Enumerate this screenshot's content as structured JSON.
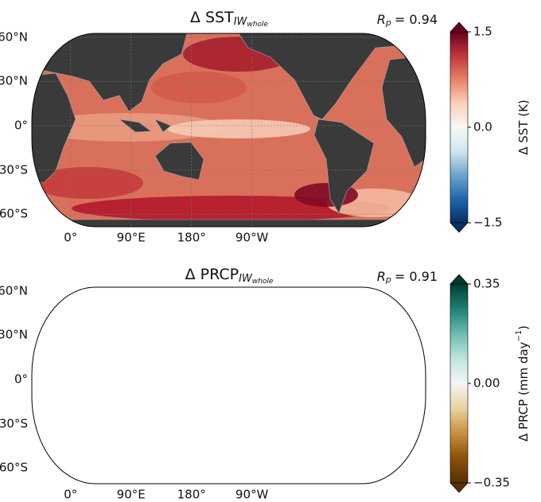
{
  "panels": [
    {
      "title": "Δ SST",
      "title_sub": "IW",
      "title_subsub": "whole",
      "stat": {
        "symbol": "R",
        "sub": "p",
        "text": "= 0.94"
      },
      "lat_ticks": [
        {
          "value": 60,
          "label": "60°N"
        },
        {
          "value": 30,
          "label": "30°N"
        },
        {
          "value": 0,
          "label": "0°"
        },
        {
          "value": -30,
          "label": "30°S"
        },
        {
          "value": -60,
          "label": "60°S"
        }
      ],
      "lon_ticks": [
        {
          "value": 90,
          "label": "90°E"
        },
        {
          "value": 180,
          "label": "180°"
        },
        {
          "value": -90,
          "label": "90°W"
        },
        {
          "value": 0,
          "label": "0°"
        }
      ],
      "colorbar": {
        "label": "Δ SST (K)",
        "lim": [
          -1.5,
          1.5
        ],
        "ticks": [
          1.5,
          {
            "value": 0,
            "label": "0.0"
          },
          {
            "value": -1.5,
            "label": "−1.5"
          }
        ],
        "colors": [
          "#053061",
          "#2166ac",
          "#6aa5cd",
          "#d1e5f0",
          "#f7f7f7",
          "#fbd0b9",
          "#e58368",
          "#c13639",
          "#67001f"
        ]
      }
    },
    {
      "title": "Δ PRCP",
      "title_sub": "IW",
      "title_subsub": "whole",
      "stat": {
        "symbol": "R",
        "sub": "p",
        "text": "= 0.91"
      },
      "contour_level": 5,
      "lat_ticks": [
        {
          "value": 60,
          "label": "60°N"
        },
        {
          "value": 30,
          "label": "30°N"
        },
        {
          "value": 0,
          "label": "0°"
        },
        {
          "value": -30,
          "label": "30°S"
        },
        {
          "value": -60,
          "label": "60°S"
        }
      ],
      "lon_ticks": [
        {
          "value": 90,
          "label": "90°E"
        },
        {
          "value": 180,
          "label": "180°"
        },
        {
          "value": -90,
          "label": "90°W"
        },
        {
          "value": 0,
          "label": "0°"
        }
      ],
      "colorbar": {
        "label": "Δ PRCP (mm day",
        "label_sup": "−1",
        "label_end": ")",
        "lim": [
          -0.35,
          0.35
        ],
        "ticks": [
          0.35,
          {
            "value": 0,
            "label": "0.00"
          },
          {
            "value": -0.35,
            "label": "−0.35"
          }
        ],
        "colors": [
          "#543005",
          "#8c510a",
          "#c98f3e",
          "#e9d2a1",
          "#f5f5f5",
          "#bfe5df",
          "#6cbcaf",
          "#1f8172",
          "#003c30"
        ]
      }
    }
  ]
}
